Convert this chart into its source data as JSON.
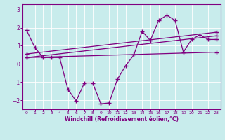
{
  "xlabel": "Windchill (Refroidissement éolien,°C)",
  "background_color": "#c8ecec",
  "line_color": "#800080",
  "grid_color": "#ffffff",
  "xlim": [
    -0.5,
    23.5
  ],
  "ylim": [
    -2.5,
    3.3
  ],
  "yticks": [
    -2,
    -1,
    0,
    1,
    2,
    3
  ],
  "xticks": [
    0,
    1,
    2,
    3,
    4,
    5,
    6,
    7,
    8,
    9,
    10,
    11,
    12,
    13,
    14,
    15,
    16,
    17,
    18,
    19,
    20,
    21,
    22,
    23
  ],
  "main_series": [
    1.85,
    0.9,
    0.35,
    0.35,
    0.35,
    -1.4,
    -2.05,
    -1.05,
    -1.05,
    -2.2,
    -2.15,
    -0.85,
    -0.1,
    0.5,
    1.8,
    1.3,
    2.4,
    2.7,
    2.4,
    0.65,
    1.35,
    1.6,
    1.35,
    1.35
  ],
  "trend1_x": [
    0,
    23
  ],
  "trend1_y": [
    0.35,
    0.65
  ],
  "trend2_x": [
    0,
    23
  ],
  "trend2_y": [
    0.35,
    1.55
  ],
  "trend3_x": [
    0,
    23
  ],
  "trend3_y": [
    0.55,
    1.75
  ]
}
